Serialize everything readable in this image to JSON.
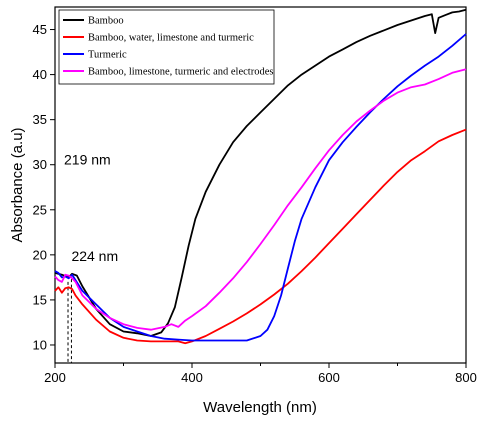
{
  "chart_data": {
    "type": "line",
    "xlabel": "Wavelength (nm)",
    "ylabel": "Absorbance (a.u)",
    "xlim": [
      200,
      800
    ],
    "ylim": [
      8,
      47.5
    ],
    "xticks": [
      200,
      400,
      600,
      800
    ],
    "yticks": [
      10,
      15,
      20,
      25,
      30,
      35,
      40,
      45
    ],
    "legend_position": "top-left",
    "annotations": [
      {
        "text": "219 nm",
        "x": 219
      },
      {
        "text": "224 nm",
        "x": 224
      }
    ],
    "series": [
      {
        "name": "Bamboo",
        "color": "#000000",
        "x": [
          200,
          210,
          220,
          225,
          232,
          240,
          260,
          280,
          300,
          320,
          340,
          355,
          365,
          375,
          385,
          395,
          405,
          420,
          440,
          460,
          480,
          500,
          520,
          540,
          560,
          580,
          600,
          620,
          640,
          660,
          680,
          700,
          720,
          740,
          750,
          755,
          760,
          770,
          780,
          790,
          800
        ],
        "y": [
          18.0,
          17.8,
          17.5,
          17.9,
          17.7,
          16.5,
          14.0,
          12.3,
          11.5,
          11.3,
          11.0,
          11.4,
          12.4,
          14.2,
          17.5,
          21.0,
          24.0,
          27.0,
          30.0,
          32.5,
          34.3,
          35.8,
          37.3,
          38.8,
          40.0,
          41.0,
          42.0,
          42.8,
          43.6,
          44.3,
          44.9,
          45.5,
          46.0,
          46.5,
          46.7,
          44.6,
          46.3,
          46.6,
          46.9,
          47.0,
          47.2
        ]
      },
      {
        "name": "Bamboo, water, limestone and turmeric",
        "color": "#ff0000",
        "x": [
          200,
          205,
          210,
          215,
          220,
          225,
          230,
          240,
          260,
          280,
          300,
          320,
          340,
          360,
          380,
          390,
          400,
          420,
          440,
          460,
          480,
          500,
          520,
          540,
          560,
          580,
          600,
          620,
          640,
          660,
          680,
          700,
          720,
          740,
          760,
          780,
          800
        ],
        "y": [
          16.0,
          16.4,
          15.8,
          16.3,
          16.4,
          16.2,
          15.5,
          14.5,
          12.8,
          11.5,
          10.8,
          10.5,
          10.4,
          10.4,
          10.4,
          10.2,
          10.4,
          11.0,
          11.8,
          12.6,
          13.5,
          14.5,
          15.6,
          16.8,
          18.2,
          19.7,
          21.3,
          22.9,
          24.5,
          26.1,
          27.7,
          29.2,
          30.5,
          31.5,
          32.6,
          33.3,
          33.9
        ]
      },
      {
        "name": "Turmeric",
        "color": "#0000ff",
        "x": [
          200,
          205,
          210,
          215,
          220,
          225,
          230,
          240,
          260,
          280,
          300,
          320,
          340,
          360,
          380,
          400,
          420,
          440,
          460,
          480,
          500,
          510,
          520,
          530,
          540,
          550,
          560,
          580,
          600,
          620,
          640,
          660,
          680,
          700,
          720,
          740,
          760,
          780,
          800
        ],
        "y": [
          18.2,
          18.0,
          17.5,
          17.6,
          17.4,
          17.8,
          17.2,
          16.0,
          14.5,
          13.0,
          12.0,
          11.5,
          11.0,
          10.7,
          10.6,
          10.5,
          10.5,
          10.5,
          10.5,
          10.5,
          11.0,
          11.7,
          13.2,
          15.5,
          18.5,
          21.5,
          24.0,
          27.5,
          30.5,
          32.5,
          34.2,
          35.8,
          37.3,
          38.7,
          39.9,
          41.0,
          42.0,
          43.2,
          44.5
        ]
      },
      {
        "name": "Bamboo, limestone, turmeric and electrodes",
        "color": "#ff00ff",
        "x": [
          200,
          205,
          210,
          215,
          220,
          225,
          230,
          240,
          260,
          280,
          300,
          320,
          340,
          360,
          370,
          380,
          390,
          400,
          420,
          440,
          460,
          480,
          500,
          520,
          540,
          560,
          580,
          600,
          620,
          640,
          660,
          680,
          700,
          720,
          740,
          760,
          780,
          800
        ],
        "y": [
          17.6,
          17.2,
          17.0,
          17.8,
          17.7,
          17.4,
          17.0,
          15.5,
          14.0,
          13.0,
          12.3,
          11.9,
          11.7,
          12.0,
          12.3,
          12.0,
          12.7,
          13.2,
          14.3,
          15.8,
          17.4,
          19.2,
          21.2,
          23.3,
          25.5,
          27.5,
          29.6,
          31.6,
          33.3,
          34.8,
          36.0,
          37.1,
          38.0,
          38.6,
          38.9,
          39.5,
          40.2,
          40.6
        ]
      }
    ]
  }
}
